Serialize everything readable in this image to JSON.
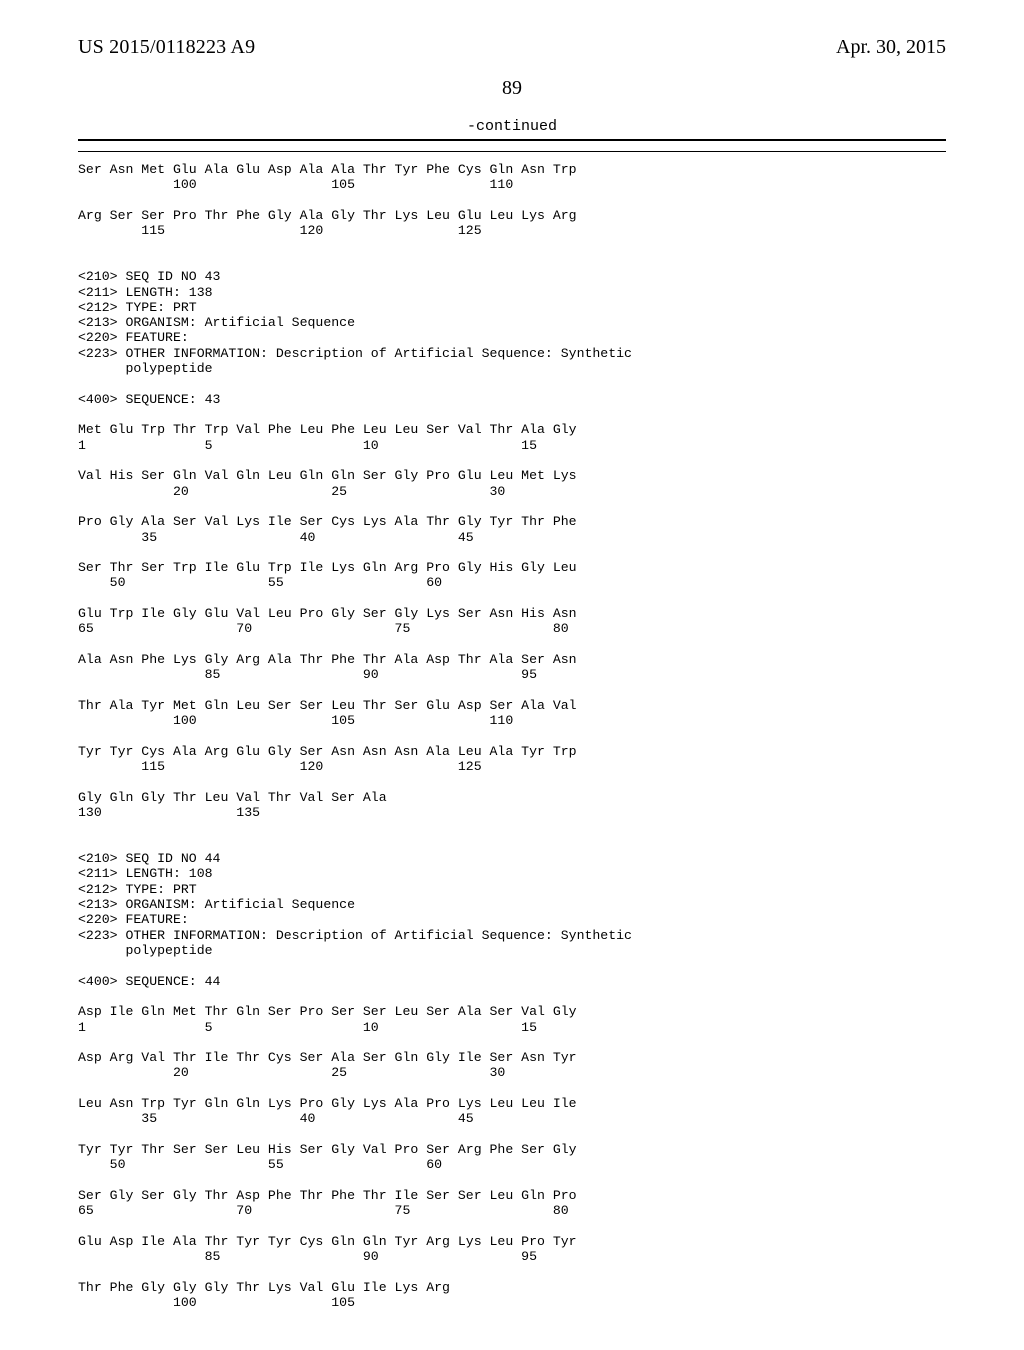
{
  "header": {
    "pubnum": "US 2015/0118223 A9",
    "pubdate": "Apr. 30, 2015"
  },
  "pagenum": "89",
  "continued_label": "-continued",
  "seq_text": "Ser Asn Met Glu Ala Glu Asp Ala Ala Thr Tyr Phe Cys Gln Asn Trp\n            100                 105                 110\n\nArg Ser Ser Pro Thr Phe Gly Ala Gly Thr Lys Leu Glu Leu Lys Arg\n        115                 120                 125\n\n\n<210> SEQ ID NO 43\n<211> LENGTH: 138\n<212> TYPE: PRT\n<213> ORGANISM: Artificial Sequence\n<220> FEATURE:\n<223> OTHER INFORMATION: Description of Artificial Sequence: Synthetic\n      polypeptide\n\n<400> SEQUENCE: 43\n\nMet Glu Trp Thr Trp Val Phe Leu Phe Leu Leu Ser Val Thr Ala Gly\n1               5                   10                  15\n\nVal His Ser Gln Val Gln Leu Gln Gln Ser Gly Pro Glu Leu Met Lys\n            20                  25                  30\n\nPro Gly Ala Ser Val Lys Ile Ser Cys Lys Ala Thr Gly Tyr Thr Phe\n        35                  40                  45\n\nSer Thr Ser Trp Ile Glu Trp Ile Lys Gln Arg Pro Gly His Gly Leu\n    50                  55                  60\n\nGlu Trp Ile Gly Glu Val Leu Pro Gly Ser Gly Lys Ser Asn His Asn\n65                  70                  75                  80\n\nAla Asn Phe Lys Gly Arg Ala Thr Phe Thr Ala Asp Thr Ala Ser Asn\n                85                  90                  95\n\nThr Ala Tyr Met Gln Leu Ser Ser Leu Thr Ser Glu Asp Ser Ala Val\n            100                 105                 110\n\nTyr Tyr Cys Ala Arg Glu Gly Ser Asn Asn Asn Ala Leu Ala Tyr Trp\n        115                 120                 125\n\nGly Gln Gly Thr Leu Val Thr Val Ser Ala\n130                 135\n\n\n<210> SEQ ID NO 44\n<211> LENGTH: 108\n<212> TYPE: PRT\n<213> ORGANISM: Artificial Sequence\n<220> FEATURE:\n<223> OTHER INFORMATION: Description of Artificial Sequence: Synthetic\n      polypeptide\n\n<400> SEQUENCE: 44\n\nAsp Ile Gln Met Thr Gln Ser Pro Ser Ser Leu Ser Ala Ser Val Gly\n1               5                   10                  15\n\nAsp Arg Val Thr Ile Thr Cys Ser Ala Ser Gln Gly Ile Ser Asn Tyr\n            20                  25                  30\n\nLeu Asn Trp Tyr Gln Gln Lys Pro Gly Lys Ala Pro Lys Leu Leu Ile\n        35                  40                  45\n\nTyr Tyr Thr Ser Ser Leu His Ser Gly Val Pro Ser Arg Phe Ser Gly\n    50                  55                  60\n\nSer Gly Ser Gly Thr Asp Phe Thr Phe Thr Ile Ser Ser Leu Gln Pro\n65                  70                  75                  80\n\nGlu Asp Ile Ala Thr Tyr Tyr Cys Gln Gln Tyr Arg Lys Leu Pro Tyr\n                85                  90                  95\n\nThr Phe Gly Gly Gly Thr Lys Val Glu Ile Lys Arg\n            100                 105"
}
